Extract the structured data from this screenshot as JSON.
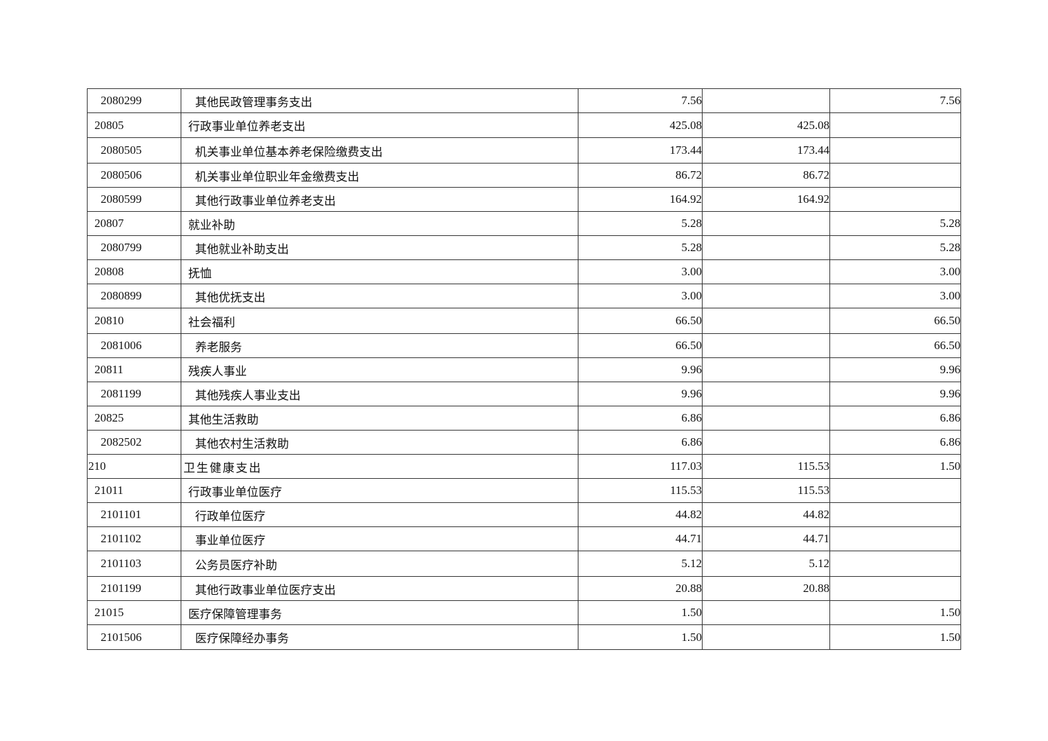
{
  "table": {
    "rows": [
      {
        "code": "2080299",
        "name": "其他民政管理事务支出",
        "total": "7.56",
        "basic": "",
        "project": "7.56",
        "level": 3
      },
      {
        "code": "20805",
        "name": "行政事业单位养老支出",
        "total": "425.08",
        "basic": "425.08",
        "project": "",
        "level": 2
      },
      {
        "code": "2080505",
        "name": "机关事业单位基本养老保险缴费支出",
        "total": "173.44",
        "basic": "173.44",
        "project": "",
        "level": 3
      },
      {
        "code": "2080506",
        "name": "机关事业单位职业年金缴费支出",
        "total": "86.72",
        "basic": "86.72",
        "project": "",
        "level": 3
      },
      {
        "code": "2080599",
        "name": "其他行政事业单位养老支出",
        "total": "164.92",
        "basic": "164.92",
        "project": "",
        "level": 3
      },
      {
        "code": "20807",
        "name": "就业补助",
        "total": "5.28",
        "basic": "",
        "project": "5.28",
        "level": 2
      },
      {
        "code": "2080799",
        "name": "其他就业补助支出",
        "total": "5.28",
        "basic": "",
        "project": "5.28",
        "level": 3
      },
      {
        "code": "20808",
        "name": "抚恤",
        "total": "3.00",
        "basic": "",
        "project": "3.00",
        "level": 2
      },
      {
        "code": "2080899",
        "name": "其他优抚支出",
        "total": "3.00",
        "basic": "",
        "project": "3.00",
        "level": 3
      },
      {
        "code": "20810",
        "name": "社会福利",
        "total": "66.50",
        "basic": "",
        "project": "66.50",
        "level": 2
      },
      {
        "code": "2081006",
        "name": "养老服务",
        "total": "66.50",
        "basic": "",
        "project": "66.50",
        "level": 3
      },
      {
        "code": "20811",
        "name": "残疾人事业",
        "total": "9.96",
        "basic": "",
        "project": "9.96",
        "level": 2
      },
      {
        "code": "2081199",
        "name": "其他残疾人事业支出",
        "total": "9.96",
        "basic": "",
        "project": "9.96",
        "level": 3
      },
      {
        "code": "20825",
        "name": "其他生活救助",
        "total": "6.86",
        "basic": "",
        "project": "6.86",
        "level": 2
      },
      {
        "code": "2082502",
        "name": "其他农村生活救助",
        "total": "6.86",
        "basic": "",
        "project": "6.86",
        "level": 3
      },
      {
        "code": "210",
        "name": "卫生健康支出",
        "total": "117.03",
        "basic": "115.53",
        "project": "1.50",
        "level": 1
      },
      {
        "code": "21011",
        "name": "行政事业单位医疗",
        "total": "115.53",
        "basic": "115.53",
        "project": "",
        "level": 2
      },
      {
        "code": "2101101",
        "name": "行政单位医疗",
        "total": "44.82",
        "basic": "44.82",
        "project": "",
        "level": 3
      },
      {
        "code": "2101102",
        "name": "事业单位医疗",
        "total": "44.71",
        "basic": "44.71",
        "project": "",
        "level": 3
      },
      {
        "code": "2101103",
        "name": "公务员医疗补助",
        "total": "5.12",
        "basic": "5.12",
        "project": "",
        "level": 3
      },
      {
        "code": "2101199",
        "name": "其他行政事业单位医疗支出",
        "total": "20.88",
        "basic": "20.88",
        "project": "",
        "level": 3
      },
      {
        "code": "21015",
        "name": "医疗保障管理事务",
        "total": "1.50",
        "basic": "",
        "project": "1.50",
        "level": 2
      },
      {
        "code": "2101506",
        "name": "医疗保障经办事务",
        "total": "1.50",
        "basic": "",
        "project": "1.50",
        "level": 3
      }
    ]
  }
}
